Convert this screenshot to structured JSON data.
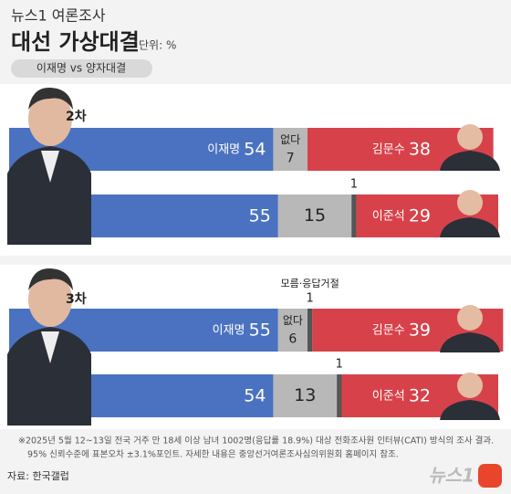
{
  "header": {
    "brand": "뉴스1 여론조사",
    "title": "대선 가상대결",
    "unit": "단위: %",
    "subtitle": "이재명 vs 양자대결"
  },
  "chart_data": [
    {
      "type": "bar",
      "title": "2차",
      "xlim": [
        0,
        100
      ],
      "rows": [
        {
          "segments": [
            {
              "name": "이재명",
              "value": 54,
              "color": "#4a72c0"
            },
            {
              "name": "없다",
              "value": 7,
              "color": "#b8b8b8"
            },
            {
              "name": "김문수",
              "value": 38,
              "color": "#d7424a"
            }
          ]
        },
        {
          "segments": [
            {
              "value": 55,
              "color": "#4a72c0"
            },
            {
              "value": 15,
              "color": "#b8b8b8"
            },
            {
              "value": 1,
              "color": "#555555"
            },
            {
              "name": "이준석",
              "value": 29,
              "color": "#d7424a"
            }
          ]
        }
      ]
    },
    {
      "type": "bar",
      "title": "3차",
      "xlim": [
        0,
        100
      ],
      "rows": [
        {
          "segments": [
            {
              "name": "이재명",
              "value": 55,
              "color": "#4a72c0"
            },
            {
              "name": "없다",
              "value": 6,
              "color": "#b8b8b8"
            },
            {
              "name": "모름·응답거절",
              "value": 1,
              "color": "#555555"
            },
            {
              "name": "김문수",
              "value": 39,
              "color": "#d7424a"
            }
          ]
        },
        {
          "segments": [
            {
              "value": 54,
              "color": "#4a72c0"
            },
            {
              "value": 13,
              "color": "#b8b8b8"
            },
            {
              "value": 1,
              "color": "#555555"
            },
            {
              "name": "이준석",
              "value": 32,
              "color": "#d7424a"
            }
          ]
        }
      ]
    }
  ],
  "footnote": [
    "※2025년 5월 12~13일 전국 거주 만 18세 이상 남녀 1002명(응답률 18.9%) 대상 전화조사원 인터뷰(CATI) 방식의 조사 결과.",
    "95% 신뢰수준에 표본오차 ±3.1%포인트. 자세한 내용은 중앙선거여론조사심의위원회 홈페이지 참조."
  ],
  "source": "자료: 한국갤럽",
  "logo": "뉴스1"
}
